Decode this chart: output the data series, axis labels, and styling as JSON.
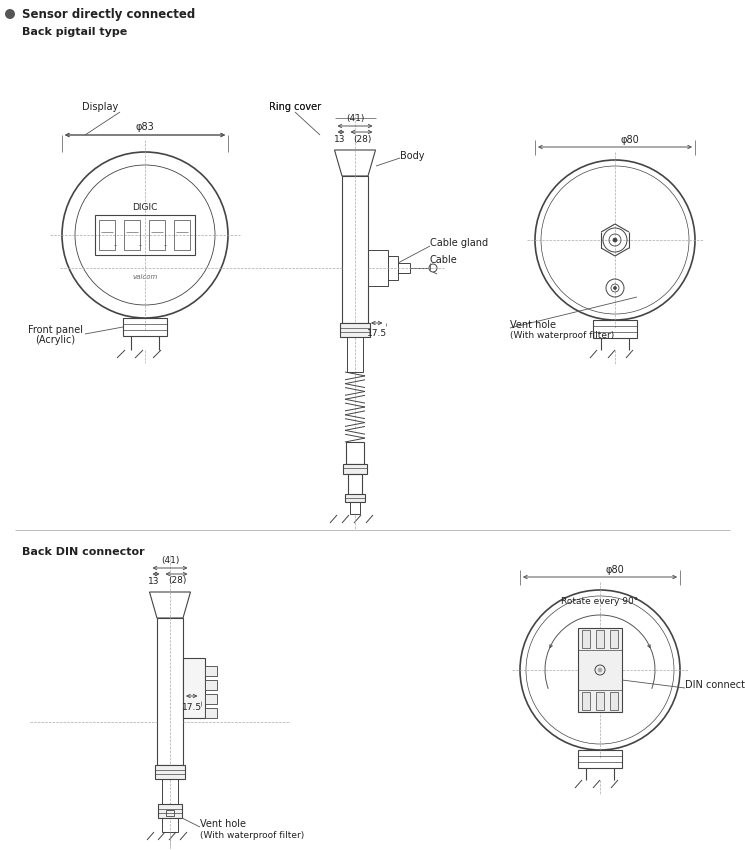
{
  "title": "Sensor directly connected",
  "section1": "Back pigtail type",
  "section2": "Back DIN connector",
  "bg_color": "#ffffff",
  "lc": "#444444",
  "tc": "#222222",
  "dc": "#555555",
  "dash_color": "#aaaaaa"
}
